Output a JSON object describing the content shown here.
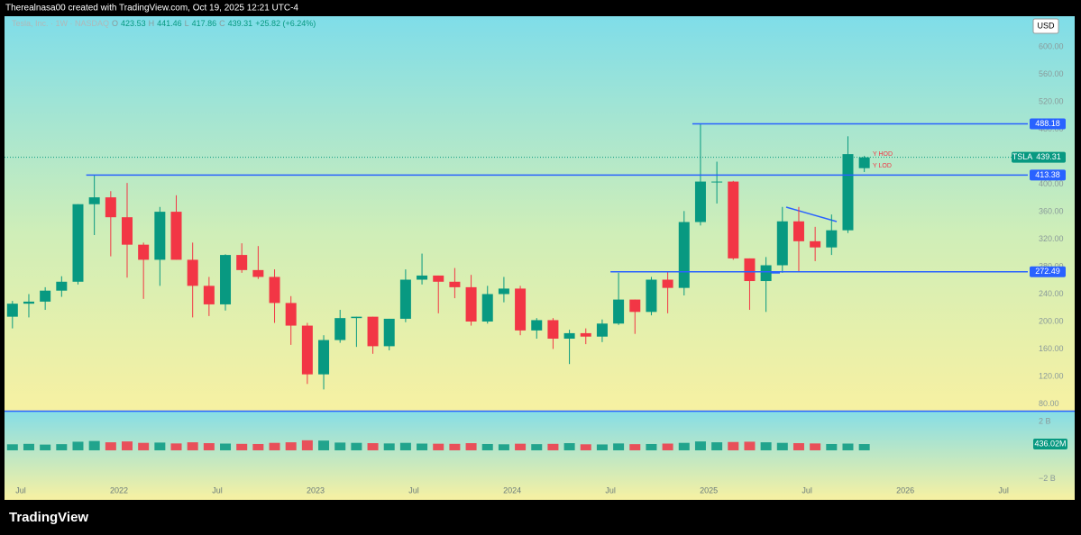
{
  "header": {
    "credit": "Therealnasa00 created with TradingView.com, Oct 19, 2025 12:21 UTC-4"
  },
  "footer": {
    "logo": "TradingView"
  },
  "chart_data": {
    "type": "candlestick",
    "currency": "USD",
    "legend": {
      "symbol": "Tesla, Inc. · 1W · NASDAQ",
      "ohlc_labels": [
        "O",
        "H",
        "L",
        "C"
      ],
      "ohlc": [
        423.53,
        441.46,
        417.86,
        439.31
      ],
      "change_label": "+25.82 (+6.24%)"
    },
    "x": [
      "2021-06",
      "2021-07",
      "2021-08",
      "2021-09",
      "2021-10",
      "2021-11",
      "2021-12",
      "2022-01",
      "2022-02",
      "2022-03",
      "2022-04",
      "2022-05",
      "2022-06",
      "2022-07",
      "2022-08",
      "2022-09",
      "2022-10",
      "2022-11",
      "2022-12",
      "2023-01",
      "2023-02",
      "2023-03",
      "2023-04",
      "2023-05",
      "2023-06",
      "2023-07",
      "2023-08",
      "2023-09",
      "2023-10",
      "2023-11",
      "2023-12",
      "2024-01",
      "2024-02",
      "2024-03",
      "2024-04",
      "2024-05",
      "2024-06",
      "2024-07",
      "2024-08",
      "2024-09",
      "2024-10",
      "2024-11",
      "2024-12",
      "2025-01",
      "2025-02",
      "2025-03",
      "2025-04",
      "2025-05",
      "2025-06",
      "2025-07",
      "2025-08",
      "2025-09",
      "2025-10"
    ],
    "open": [
      207,
      226,
      229,
      245,
      258,
      371,
      381,
      352,
      312,
      290,
      360,
      290,
      252,
      225,
      297,
      275,
      265,
      227,
      194,
      123,
      173,
      205,
      207,
      164,
      204,
      261,
      267,
      258,
      250,
      200,
      240,
      248,
      187,
      202,
      175,
      183,
      178,
      197,
      232,
      214,
      261,
      249,
      345,
      404,
      404,
      292,
      259,
      282,
      346,
      317,
      308,
      333,
      423.53
    ],
    "high": [
      230,
      240,
      250,
      266,
      371,
      414,
      390,
      402,
      315,
      367,
      384,
      315,
      265,
      298,
      314,
      310,
      276,
      237,
      198,
      180,
      217,
      207,
      207,
      204,
      276,
      299,
      267,
      278,
      268,
      252,
      265,
      252,
      205,
      205,
      188,
      190,
      203,
      271,
      232,
      265,
      273,
      361,
      488,
      433,
      405,
      292,
      294,
      367,
      367,
      338,
      356,
      470,
      441.46
    ],
    "low": [
      190,
      206,
      217,
      236,
      254,
      326,
      295,
      264,
      233,
      252,
      290,
      206,
      208,
      216,
      271,
      262,
      198,
      166,
      109,
      101,
      169,
      163,
      153,
      158,
      199,
      254,
      212,
      234,
      194,
      197,
      228,
      180,
      175,
      160,
      138,
      167,
      170,
      195,
      182,
      209,
      212,
      238,
      340,
      372,
      290,
      217,
      214,
      271,
      273,
      288,
      297,
      329,
      417.86
    ],
    "close": [
      226,
      229,
      245,
      258,
      371,
      381,
      352,
      312,
      290,
      360,
      290,
      252,
      225,
      297,
      275,
      265,
      227,
      194,
      123,
      173,
      205,
      207,
      164,
      204,
      261,
      267,
      258,
      250,
      200,
      240,
      248,
      187,
      202,
      175,
      183,
      178,
      197,
      232,
      214,
      261,
      249,
      345,
      404,
      404,
      292,
      259,
      282,
      346,
      317,
      308,
      333,
      444,
      439.31
    ],
    "volume": [
      420,
      450,
      400,
      430,
      600,
      650,
      560,
      620,
      520,
      540,
      480,
      560,
      500,
      470,
      450,
      440,
      520,
      560,
      700,
      680,
      540,
      520,
      500,
      480,
      520,
      470,
      460,
      450,
      500,
      440,
      420,
      460,
      430,
      450,
      500,
      420,
      410,
      480,
      430,
      440,
      470,
      520,
      620,
      560,
      580,
      600,
      560,
      520,
      500,
      480,
      440,
      470,
      436.02
    ],
    "volume_value_label": "436.02M",
    "up_color": "#089981",
    "down_color": "#f23645",
    "ylim": [
      70,
      645
    ],
    "yticks": [
      {
        "value": 80,
        "label": "80.00"
      },
      {
        "value": 120,
        "label": "120.00"
      },
      {
        "value": 160,
        "label": "160.00"
      },
      {
        "value": 200,
        "label": "200.00"
      },
      {
        "value": 240,
        "label": "240.00"
      },
      {
        "value": 280,
        "label": "280.00"
      },
      {
        "value": 320,
        "label": "320.00"
      },
      {
        "value": 360,
        "label": "360.00"
      },
      {
        "value": 400,
        "label": "400.00"
      },
      {
        "value": 440,
        "label": "440.00"
      },
      {
        "value": 480,
        "label": "480.00"
      },
      {
        "value": 520,
        "label": "520.00"
      },
      {
        "value": 560,
        "label": "560.00"
      },
      {
        "value": 600,
        "label": "600.00"
      }
    ],
    "volume_lim": [
      -2200,
      2700
    ],
    "volume_ticks": [
      {
        "value": 2000,
        "label": "2 B"
      },
      {
        "value": -2000,
        "label": "−2 B"
      }
    ],
    "xticks": [
      {
        "value": "2021-07",
        "label": "Jul"
      },
      {
        "value": "2022-01",
        "label": "2022"
      },
      {
        "value": "2022-07",
        "label": "Jul"
      },
      {
        "value": "2023-01",
        "label": "2023"
      },
      {
        "value": "2023-07",
        "label": "Jul"
      },
      {
        "value": "2024-01",
        "label": "2024"
      },
      {
        "value": "2024-07",
        "label": "Jul"
      },
      {
        "value": "2025-01",
        "label": "2025"
      },
      {
        "value": "2025-07",
        "label": "Jul"
      },
      {
        "value": "2026-01",
        "label": "2026"
      },
      {
        "value": "2026-07",
        "label": "Jul"
      }
    ],
    "levels": [
      {
        "value": 488.18,
        "from": "2024-12"
      },
      {
        "value": 413.38,
        "from": "2021-11"
      },
      {
        "value": 272.49,
        "from": "2024-07"
      }
    ],
    "last_price": {
      "symbol": "TSLA",
      "value": 439.31
    },
    "annotations": [
      "Y HOD",
      "Y LOD"
    ]
  }
}
